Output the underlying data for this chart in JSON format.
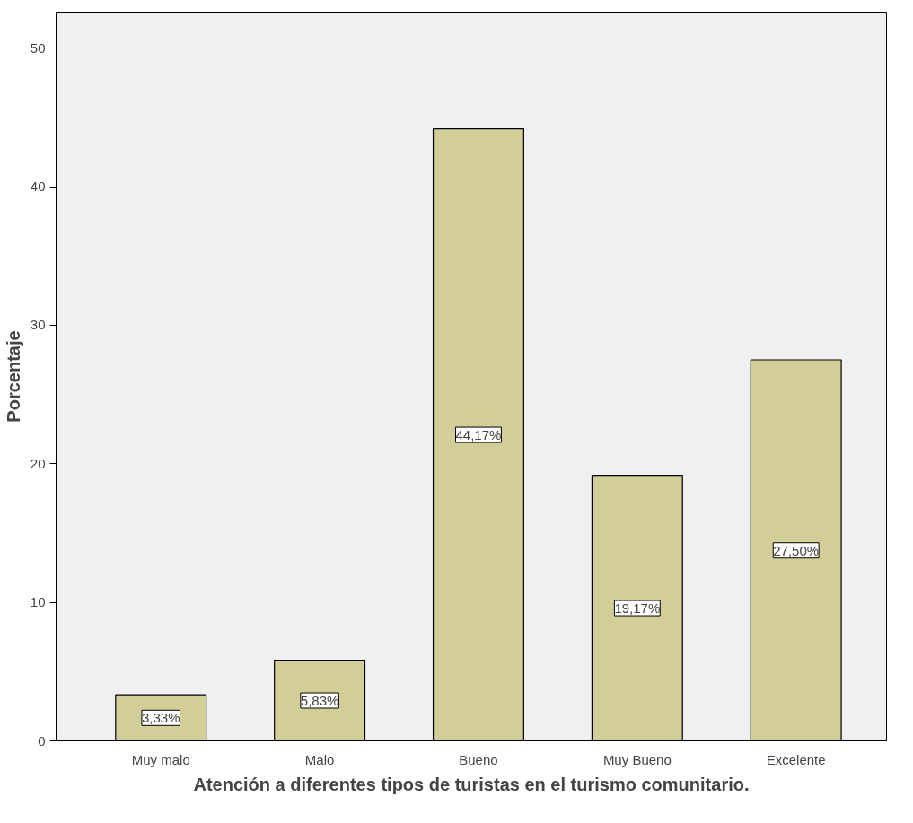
{
  "chart_data": {
    "type": "bar",
    "xlabel": "Atención a diferentes tipos de turistas en el turismo comunitario.",
    "ylabel": "Porcentaje",
    "categories": [
      "Muy malo",
      "Malo",
      "Bueno",
      "Muy Bueno",
      "Excelente"
    ],
    "values": [
      3.33,
      5.83,
      44.17,
      19.17,
      27.5
    ],
    "value_labels": [
      "3,33%",
      "5,83%",
      "44,17%",
      "19,17%",
      "27,50%"
    ],
    "color": "#d3ce97",
    "ylim": [
      0,
      52.6
    ],
    "yticks": [
      0,
      10,
      20,
      30,
      40,
      50
    ],
    "grid": false
  }
}
